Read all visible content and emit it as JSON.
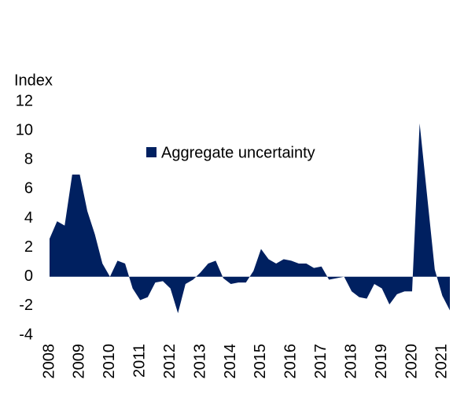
{
  "chart_data": {
    "type": "area",
    "y_label": "Index",
    "categories": [
      "2008",
      null,
      null,
      null,
      "2009",
      null,
      null,
      null,
      "2010",
      null,
      null,
      null,
      "2011",
      null,
      null,
      null,
      "2012",
      null,
      null,
      null,
      "2013",
      null,
      null,
      null,
      "2014",
      null,
      null,
      null,
      "2015",
      null,
      null,
      null,
      "2016",
      null,
      null,
      null,
      "2017",
      null,
      null,
      null,
      "2018",
      null,
      null,
      null,
      "2019",
      null,
      null,
      null,
      "2020",
      null,
      null,
      null,
      "2021",
      null
    ],
    "series": [
      {
        "name": "Aggregate uncertainty",
        "color": "#002060",
        "values": [
          2.6,
          3.8,
          3.5,
          7.0,
          7.0,
          4.5,
          2.9,
          0.9,
          0.0,
          1.1,
          0.9,
          -0.8,
          -1.6,
          -1.4,
          -0.4,
          -0.3,
          -0.8,
          -2.5,
          -0.5,
          -0.2,
          0.3,
          0.9,
          1.1,
          -0.1,
          -0.5,
          -0.4,
          -0.4,
          0.4,
          1.9,
          1.2,
          0.9,
          1.2,
          1.1,
          0.9,
          0.9,
          0.6,
          0.7,
          -0.2,
          -0.1,
          0.0,
          -1.0,
          -1.4,
          -1.5,
          -0.5,
          -0.8,
          -1.9,
          -1.2,
          -1.0,
          -1.0,
          10.5,
          5.5,
          0.5,
          -1.3,
          -2.3
        ]
      }
    ],
    "ylim": [
      -4,
      12
    ],
    "yticks": [
      -4,
      -2,
      0,
      2,
      4,
      6,
      8,
      10,
      12
    ],
    "legend": "top-center"
  }
}
